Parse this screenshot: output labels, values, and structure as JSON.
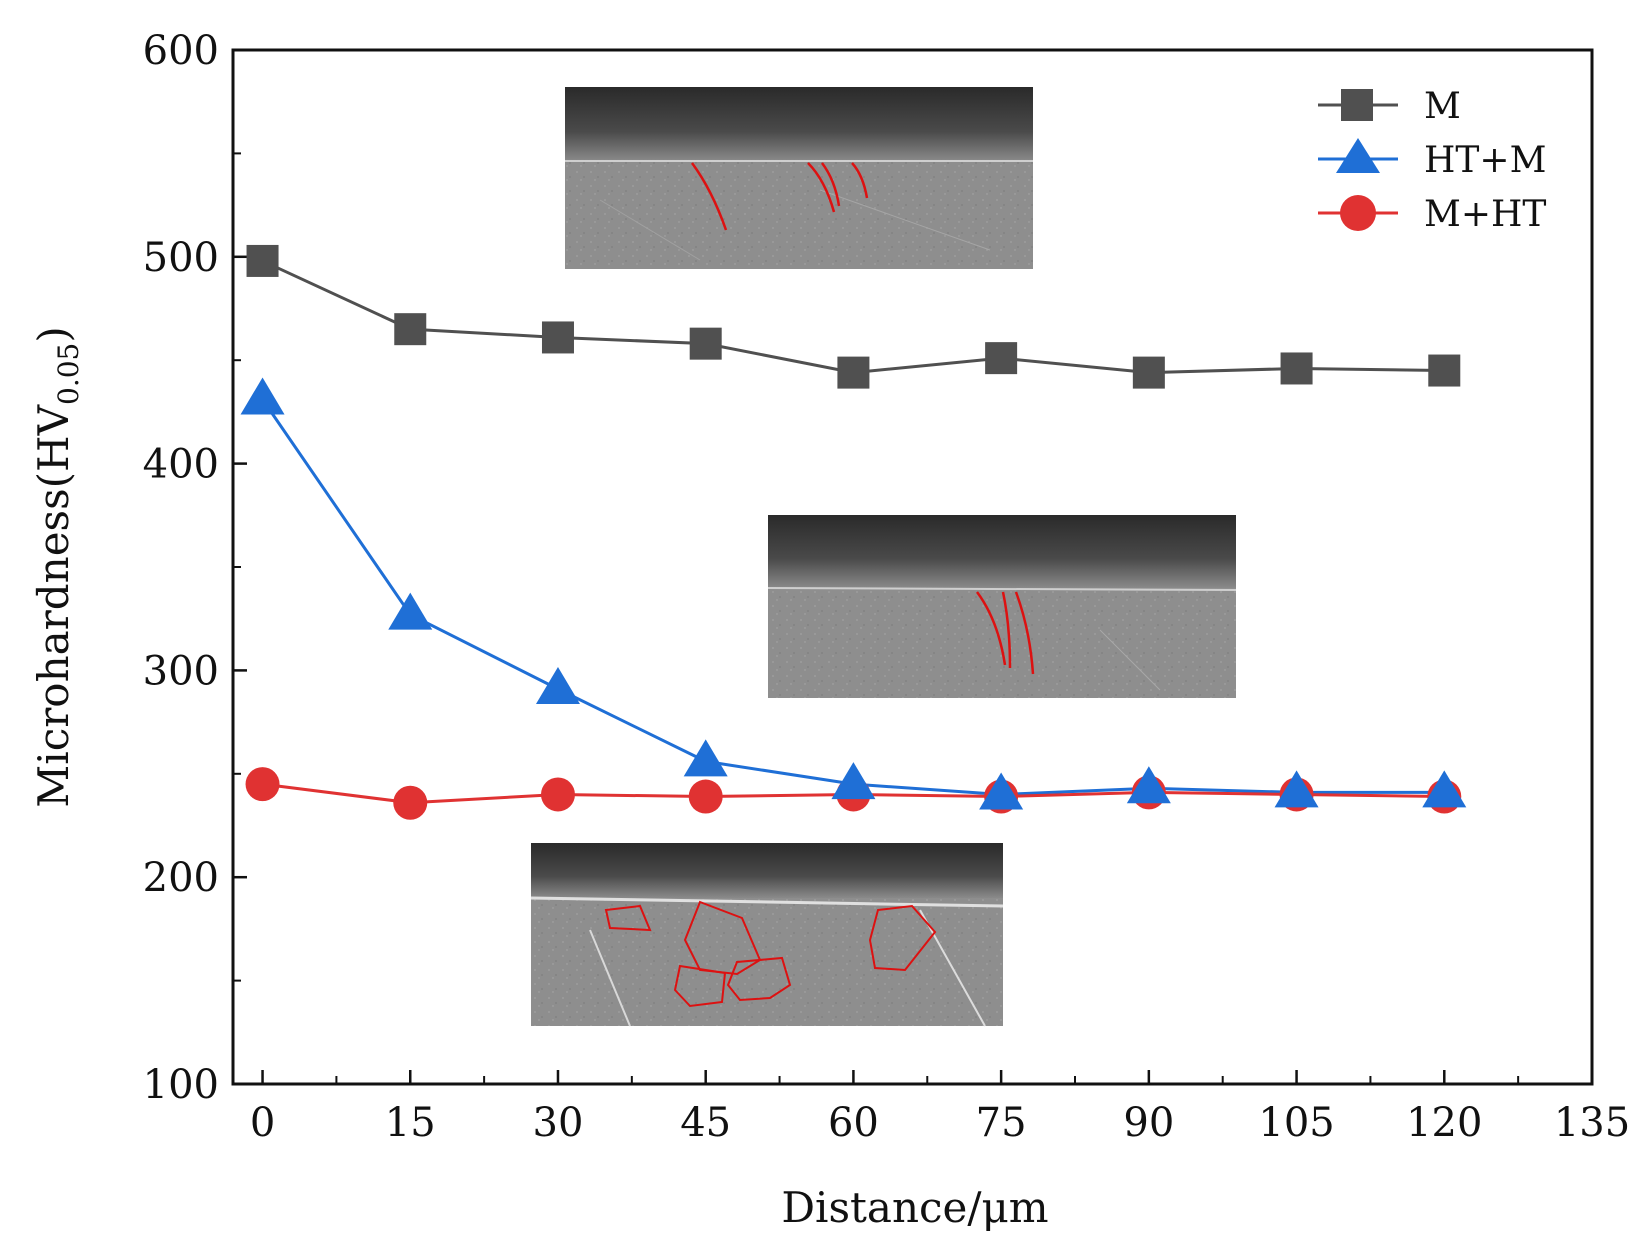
{
  "chart_data": {
    "type": "line",
    "title": "",
    "xlabel": "Distance/μm",
    "ylabel": "Microhardness(HV",
    "ylabel_subscript": "0.05",
    "ylabel_suffix": ")",
    "xlim": [
      -3,
      135
    ],
    "ylim": [
      100,
      600
    ],
    "x_ticks": [
      0,
      15,
      30,
      45,
      60,
      75,
      90,
      105,
      120,
      135
    ],
    "y_ticks": [
      100,
      200,
      300,
      400,
      500,
      600
    ],
    "x": [
      0,
      15,
      30,
      45,
      60,
      75,
      90,
      105,
      120
    ],
    "legend_position": "top-right",
    "series": [
      {
        "name": "M",
        "marker": "square",
        "color": "#505050",
        "values": [
          498,
          465,
          461,
          458,
          444,
          451,
          444,
          446,
          445
        ]
      },
      {
        "name": "HT+M",
        "marker": "triangle",
        "color": "#1f6fd6",
        "values": [
          431,
          327,
          291,
          256,
          245,
          240,
          243,
          241,
          241
        ]
      },
      {
        "name": "M+HT",
        "marker": "circle",
        "color": "#e03232",
        "values": [
          245,
          236,
          240,
          239,
          240,
          239,
          241,
          240,
          239
        ]
      }
    ],
    "insets": [
      {
        "name": "micrograph-M",
        "label_hidden": true
      },
      {
        "name": "micrograph-HT-M",
        "label_hidden": true
      },
      {
        "name": "micrograph-M-HT",
        "label_hidden": true
      }
    ]
  }
}
